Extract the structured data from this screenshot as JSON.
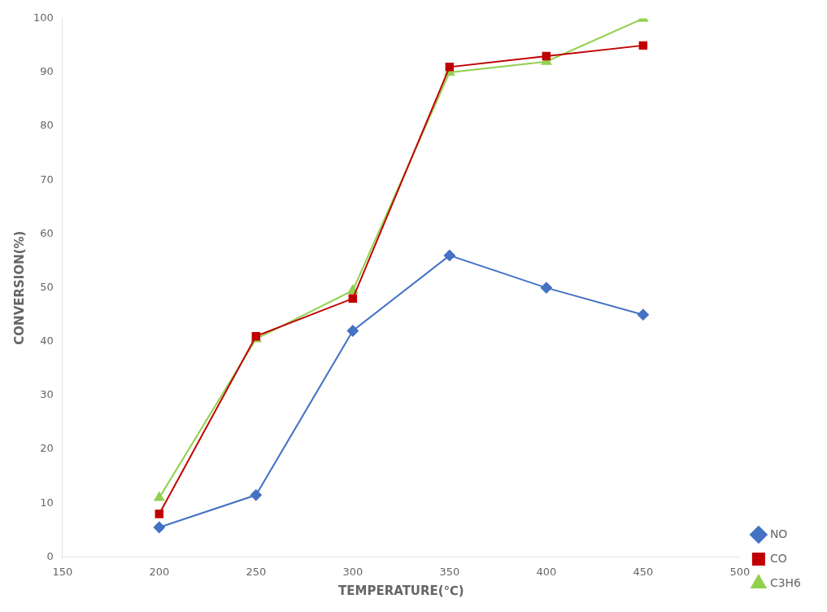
{
  "chart_data": {
    "type": "line",
    "x": [
      200,
      250,
      300,
      350,
      400,
      450
    ],
    "series": [
      {
        "name": "NO",
        "color": "#4472C4",
        "marker": "diamond",
        "values": [
          5.5,
          11.5,
          42,
          56,
          50,
          45
        ]
      },
      {
        "name": "CO",
        "color": "#C00000",
        "marker": "square",
        "values": [
          8,
          41,
          48,
          91,
          93,
          95
        ]
      },
      {
        "name": "C3H6",
        "color": "#92D050",
        "marker": "triangle",
        "values": [
          11,
          40.5,
          49.5,
          90,
          92,
          100
        ]
      }
    ],
    "xlabel": "TEMPERATURE(℃)",
    "ylabel": "CONVERSION(%)",
    "xlim": [
      150,
      500
    ],
    "ylim": [
      0,
      100
    ],
    "xticks": [
      150,
      200,
      250,
      300,
      350,
      400,
      450,
      500
    ],
    "yticks": [
      0,
      10,
      20,
      30,
      40,
      50,
      60,
      70,
      80,
      90,
      100
    ],
    "grid": false,
    "legend": "lower right"
  }
}
